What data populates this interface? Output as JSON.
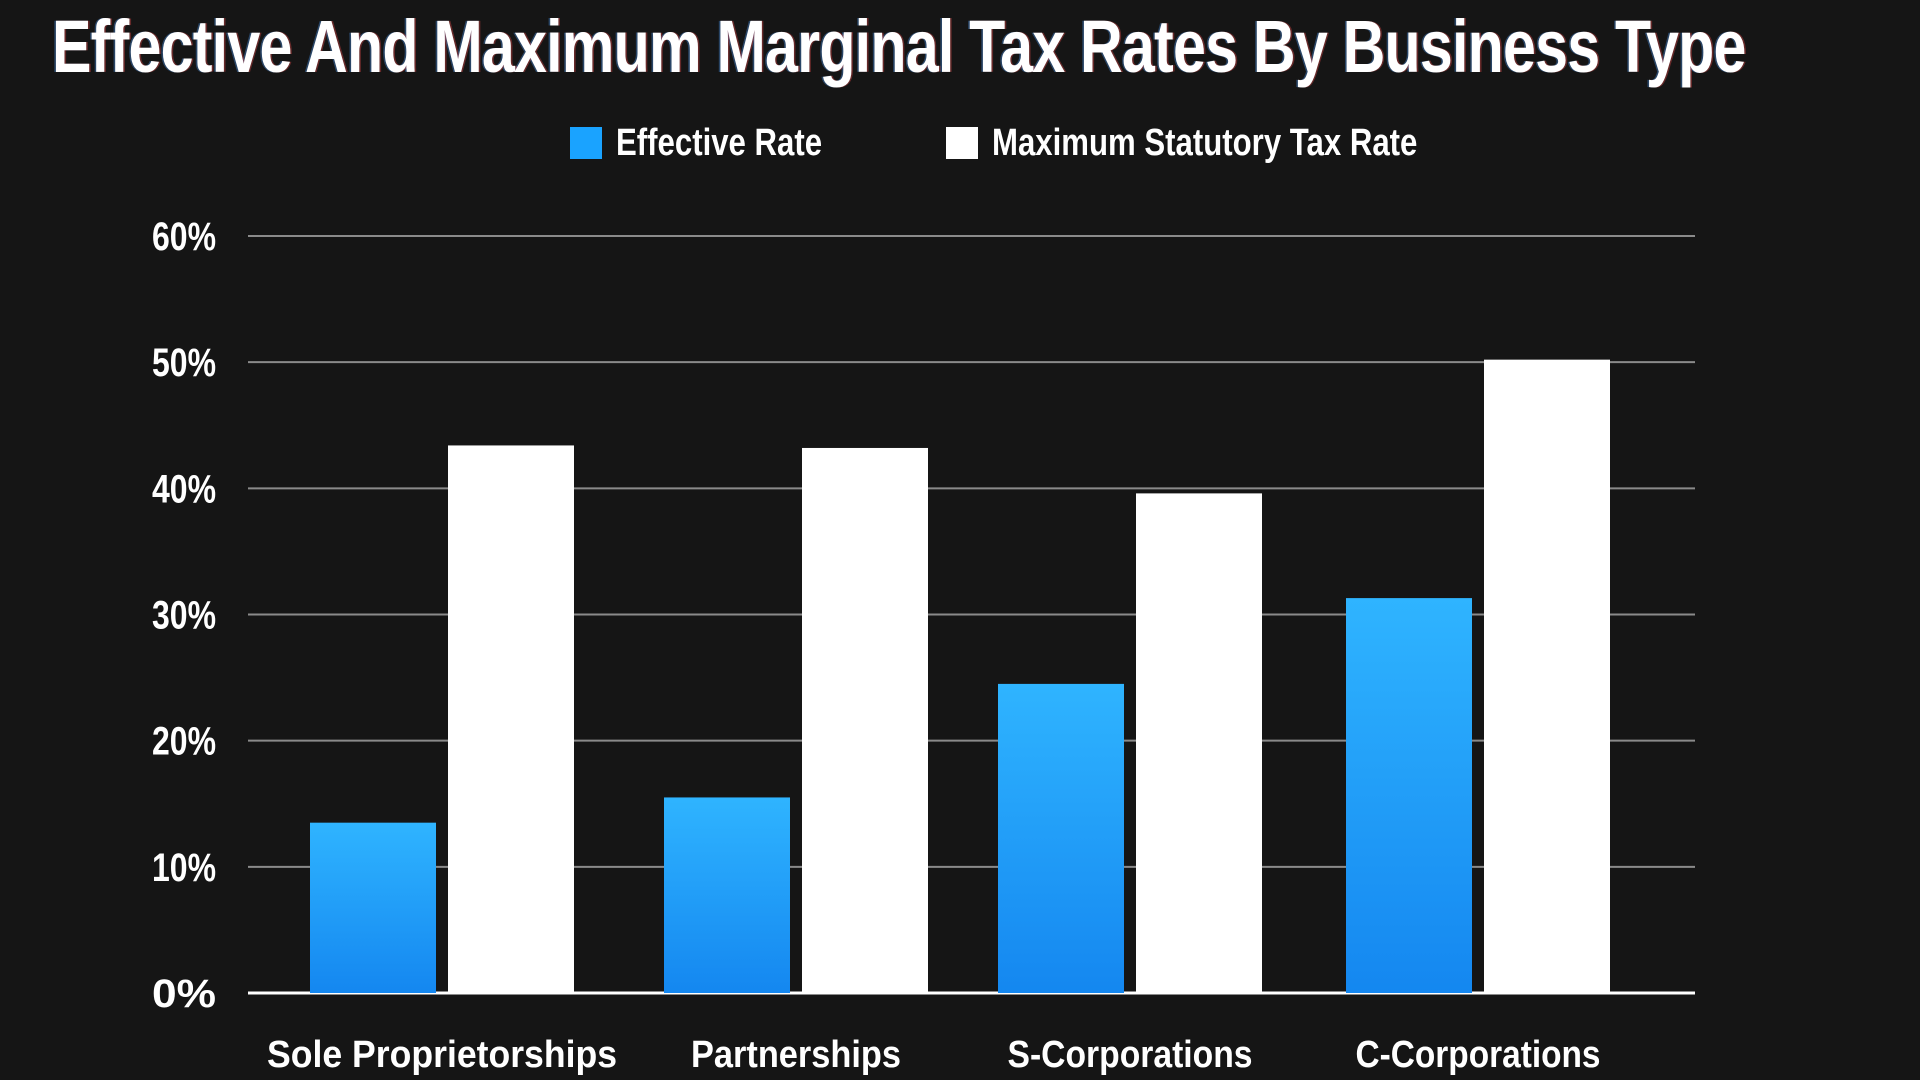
{
  "chart_data": {
    "type": "bar",
    "title": "Effective And Maximum Marginal Tax Rates By Business Type",
    "categories": [
      "Sole Proprietorships",
      "Partnerships",
      "S-Corporations",
      "C-Corporations"
    ],
    "series": [
      {
        "name": "Effective Rate",
        "values": [
          13.5,
          15.5,
          24.5,
          31.3
        ],
        "color": "#1aa3ff"
      },
      {
        "name": "Maximum Statutory Tax Rate",
        "values": [
          43.4,
          43.2,
          39.6,
          50.2
        ],
        "color": "#ffffff"
      }
    ],
    "ylim": [
      0,
      60
    ],
    "y_ticks": [
      0,
      10,
      20,
      30,
      40,
      50,
      60
    ],
    "y_tick_labels": [
      "0%",
      "10%",
      "20%",
      "30%",
      "40%",
      "50%",
      "60%"
    ],
    "xlabel": "",
    "ylabel": "",
    "grid": true,
    "legend_position": "top-center"
  },
  "colors": {
    "background": "#151515",
    "gridline": "#8a8a8a",
    "baseline": "#ffffff",
    "effective_rate": "#1aa3ff",
    "maximum_rate": "#ffffff"
  }
}
